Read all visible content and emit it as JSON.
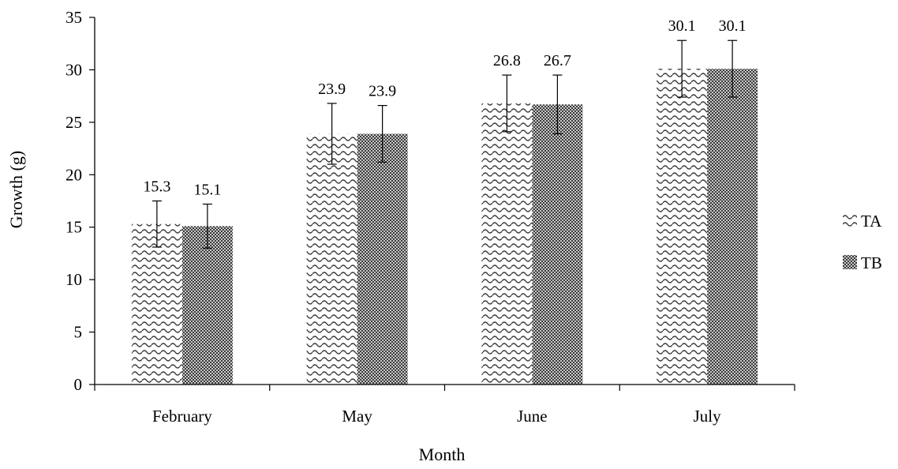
{
  "chart_data": {
    "type": "bar",
    "title": "",
    "xlabel": "Month",
    "ylabel": "Growth  (g)",
    "categories": [
      "February",
      "May",
      "June",
      "July"
    ],
    "ylim": [
      0,
      35
    ],
    "yticks": [
      0,
      5,
      10,
      15,
      20,
      25,
      30,
      35
    ],
    "grid": false,
    "legend_position": "right",
    "series": [
      {
        "name": "TA",
        "pattern": "wave",
        "values": [
          15.3,
          23.9,
          26.8,
          30.1
        ],
        "value_labels": [
          "15.3",
          "23.9",
          "26.8",
          "30.1"
        ],
        "error": [
          2.2,
          2.9,
          2.7,
          2.7
        ]
      },
      {
        "name": "TB",
        "pattern": "dense-dots",
        "values": [
          15.1,
          23.9,
          26.7,
          30.1
        ],
        "value_labels": [
          "15.1",
          "23.9",
          "26.7",
          "30.1"
        ],
        "error": [
          2.1,
          2.7,
          2.8,
          2.7
        ]
      }
    ],
    "colors": {
      "axis": "#000000",
      "pattern": "#444444",
      "background": "#ffffff"
    }
  }
}
